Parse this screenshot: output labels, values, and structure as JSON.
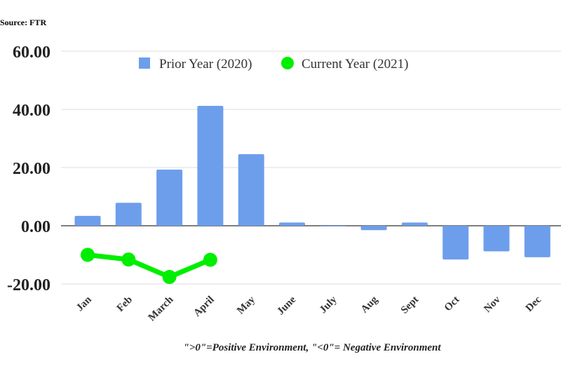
{
  "source": "Source: FTR",
  "note": "\">0\"=Positive Environment, \"<0\"= Negative Environment",
  "chart_data": {
    "type": "bar",
    "categories": [
      "Jan",
      "Feb",
      "March",
      "April",
      "May",
      "June",
      "July",
      "Aug",
      "Sept",
      "Oct",
      "Nov",
      "Dec"
    ],
    "series": [
      {
        "name": "Prior Year (2020)",
        "type": "bar",
        "color": "#6d9eeb",
        "values": [
          3.4,
          7.9,
          19.3,
          41.2,
          24.6,
          1.1,
          -0.2,
          -1.5,
          1.1,
          -11.6,
          -8.8,
          -10.8
        ]
      },
      {
        "name": "Current Year (2021)",
        "type": "line",
        "color": "#00ee00",
        "values": [
          -10.0,
          -11.6,
          -17.6,
          -11.7,
          null,
          null,
          null,
          null,
          null,
          null,
          null,
          null
        ]
      }
    ],
    "yticks": [
      "60.00",
      "40.00",
      "20.00",
      "0.00",
      "-20.00"
    ],
    "ylim": [
      -20,
      60
    ],
    "grid": true,
    "legend": "top-center"
  }
}
